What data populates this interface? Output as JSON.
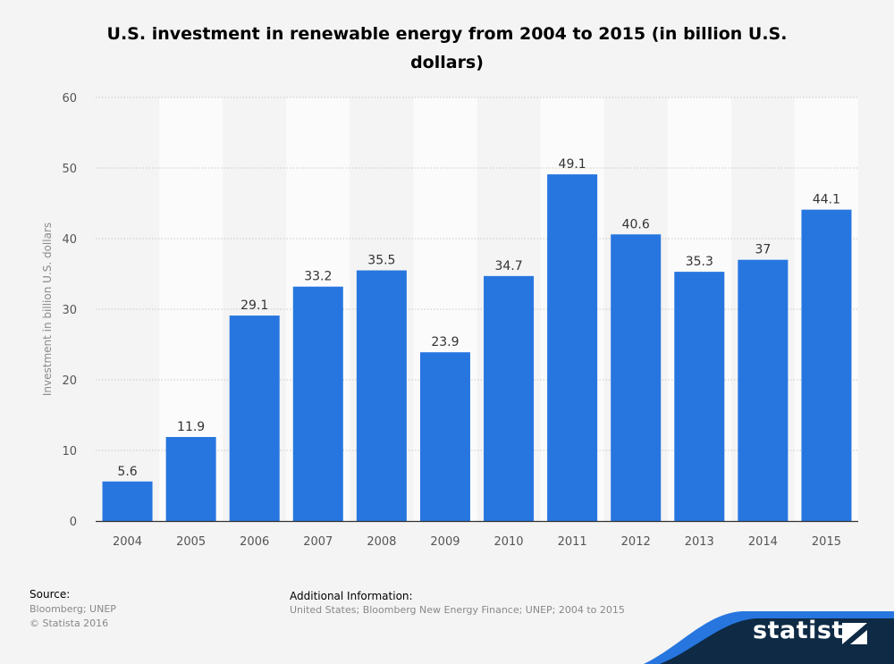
{
  "chart_data": {
    "type": "bar",
    "title": "U.S. investment in renewable energy from 2004 to 2015 (in billion U.S. dollars)",
    "xlabel": "",
    "ylabel": "Investment in billion U.S. dollars",
    "ylim": [
      0,
      60
    ],
    "yticks": [
      0,
      10,
      20,
      30,
      40,
      50,
      60
    ],
    "grid": true,
    "categories": [
      "2004",
      "2005",
      "2006",
      "2007",
      "2008",
      "2009",
      "2010",
      "2011",
      "2012",
      "2013",
      "2014",
      "2015"
    ],
    "values": [
      5.6,
      11.9,
      29.1,
      33.2,
      35.5,
      23.9,
      34.7,
      49.1,
      40.6,
      35.3,
      37,
      44.1
    ],
    "data_labels": [
      "5.6",
      "11.9",
      "29.1",
      "33.2",
      "35.5",
      "23.9",
      "34.7",
      "49.1",
      "40.6",
      "35.3",
      "37",
      "44.1"
    ],
    "bar_color": "#2776e0"
  },
  "title_line1": "U.S. investment in renewable energy from 2004 to 2015 (in billion U.S.",
  "title_line2": "dollars)",
  "footer": {
    "source_label": "Source:",
    "source_line1": "Bloomberg; UNEP",
    "source_line2": "© Statista 2016",
    "info_label": "Additional Information:",
    "info_text": "United States; Bloomberg New Energy Finance; UNEP; 2004 to 2015"
  },
  "brand": {
    "name": "statista",
    "band_color": "#2776e0",
    "panel_color": "#0f2a45"
  }
}
